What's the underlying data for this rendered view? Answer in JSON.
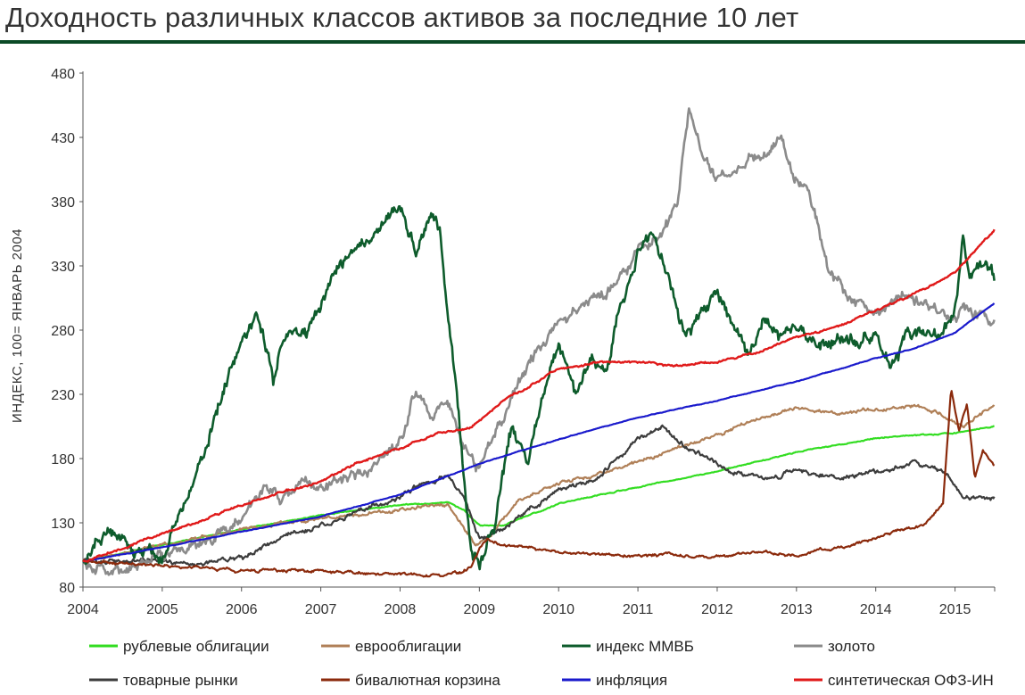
{
  "title": "Доходность различных классов активов за последние 10 лет",
  "chart_data": {
    "type": "line",
    "title": "Доходность различных классов активов за последние 10 лет",
    "xlabel": "",
    "ylabel": "ИНДЕКС, 100= ЯНВАРЬ 2004",
    "xlim": [
      2004,
      2015.5
    ],
    "ylim": [
      80,
      480
    ],
    "x_ticks": [
      "2004",
      "2005",
      "2006",
      "2007",
      "2008",
      "2009",
      "2010",
      "2011",
      "2012",
      "2013",
      "2014",
      "2015"
    ],
    "y_ticks": [
      "80",
      "130",
      "180",
      "230",
      "280",
      "330",
      "380",
      "430",
      "480"
    ],
    "legend_position": "bottom",
    "series": [
      {
        "name": "рублевые облигации",
        "color": "#33dd22",
        "x": [
          2004,
          2005,
          2006,
          2007,
          2008,
          2008.6,
          2008.8,
          2009.0,
          2009.3,
          2010,
          2011,
          2012,
          2013,
          2014,
          2015,
          2015.5
        ],
        "y": [
          100,
          113,
          125,
          136,
          144,
          146,
          140,
          128,
          128,
          145,
          158,
          170,
          185,
          196,
          200,
          205
        ]
      },
      {
        "name": "еврооблигации",
        "color": "#b08058",
        "x": [
          2004,
          2005,
          2006,
          2007,
          2008,
          2008.6,
          2008.8,
          2008.95,
          2009.1,
          2009.5,
          2010,
          2010.5,
          2011,
          2011.5,
          2012,
          2012.5,
          2013,
          2013.5,
          2014,
          2014.5,
          2014.9,
          2015.1,
          2015.5
        ],
        "y": [
          100,
          112,
          125,
          134,
          140,
          144,
          126,
          112,
          118,
          148,
          160,
          168,
          178,
          188,
          198,
          210,
          220,
          215,
          218,
          222,
          212,
          205,
          222
        ]
      },
      {
        "name": "индекс ММВБ",
        "color": "#0e5c2c",
        "x": [
          2004,
          2004.3,
          2004.6,
          2005,
          2005.4,
          2005.8,
          2006,
          2006.2,
          2006.4,
          2006.6,
          2006.8,
          2007,
          2007.2,
          2007.4,
          2007.6,
          2007.8,
          2008,
          2008.1,
          2008.2,
          2008.4,
          2008.5,
          2008.6,
          2008.7,
          2008.8,
          2008.9,
          2009.0,
          2009.2,
          2009.4,
          2009.6,
          2009.8,
          2010,
          2010.2,
          2010.4,
          2010.6,
          2010.8,
          2011,
          2011.2,
          2011.4,
          2011.6,
          2011.8,
          2012,
          2012.2,
          2012.4,
          2012.6,
          2012.8,
          2013,
          2013.2,
          2013.4,
          2013.6,
          2013.8,
          2014,
          2014.2,
          2014.4,
          2014.6,
          2014.8,
          2015,
          2015.1,
          2015.2,
          2015.3,
          2015.5
        ],
        "y": [
          100,
          120,
          110,
          105,
          160,
          240,
          270,
          300,
          240,
          290,
          275,
          300,
          330,
          345,
          350,
          365,
          380,
          360,
          340,
          370,
          360,
          300,
          250,
          170,
          110,
          100,
          130,
          200,
          180,
          230,
          270,
          230,
          260,
          250,
          300,
          340,
          350,
          320,
          270,
          290,
          310,
          280,
          260,
          290,
          270,
          285,
          275,
          265,
          280,
          270,
          275,
          250,
          275,
          280,
          270,
          295,
          350,
          320,
          330,
          320
        ]
      },
      {
        "name": "золото",
        "color": "#8b8b8b",
        "x": [
          2004,
          2004.4,
          2004.7,
          2005,
          2005.5,
          2006,
          2006.3,
          2006.5,
          2006.8,
          2007,
          2007.3,
          2007.6,
          2008,
          2008.2,
          2008.4,
          2008.6,
          2008.8,
          2009,
          2009.2,
          2009.5,
          2009.8,
          2010,
          2010.3,
          2010.6,
          2010.9,
          2011,
          2011.3,
          2011.5,
          2011.65,
          2011.8,
          2012,
          2012.3,
          2012.6,
          2012.8,
          2013,
          2013.2,
          2013.4,
          2013.6,
          2013.8,
          2014,
          2014.3,
          2014.6,
          2014.9,
          2015.1,
          2015.3,
          2015.5
        ],
        "y": [
          100,
          92,
          100,
          105,
          115,
          135,
          155,
          150,
          160,
          155,
          165,
          170,
          190,
          235,
          215,
          225,
          190,
          170,
          200,
          240,
          270,
          290,
          300,
          310,
          330,
          340,
          350,
          380,
          455,
          420,
          400,
          410,
          420,
          430,
          400,
          380,
          330,
          310,
          300,
          290,
          310,
          300,
          290,
          300,
          290,
          285
        ]
      },
      {
        "name": "товарные рынки",
        "color": "#3c3c3c",
        "x": [
          2004,
          2005,
          2005.5,
          2006,
          2006.5,
          2007,
          2007.5,
          2008,
          2008.3,
          2008.6,
          2008.8,
          2009,
          2009.3,
          2009.6,
          2010,
          2010.5,
          2011,
          2011.3,
          2011.6,
          2012,
          2012.5,
          2013,
          2013.5,
          2014,
          2014.5,
          2014.9,
          2015.1,
          2015.5
        ],
        "y": [
          100,
          100,
          98,
          103,
          118,
          128,
          140,
          150,
          160,
          167,
          150,
          120,
          125,
          140,
          155,
          165,
          195,
          205,
          190,
          175,
          165,
          170,
          165,
          170,
          178,
          168,
          150,
          150
        ]
      },
      {
        "name": "бивалютная корзина",
        "color": "#8b2a0c",
        "x": [
          2004,
          2004.5,
          2005,
          2005.5,
          2006,
          2007,
          2008,
          2008.6,
          2008.8,
          2008.9,
          2009,
          2009.1,
          2009.3,
          2009.6,
          2010,
          2010.5,
          2011,
          2011.5,
          2012,
          2012.5,
          2013,
          2013.5,
          2014,
          2014.3,
          2014.6,
          2014.85,
          2014.95,
          2015.05,
          2015.15,
          2015.25,
          2015.35,
          2015.5
        ],
        "y": [
          100,
          98,
          97,
          95,
          93,
          92,
          90,
          90,
          92,
          97,
          110,
          118,
          112,
          110,
          108,
          105,
          104,
          106,
          103,
          107,
          105,
          110,
          118,
          125,
          128,
          145,
          235,
          200,
          222,
          165,
          185,
          175
        ]
      },
      {
        "name": "инфляция",
        "color": "#1a1acc",
        "x": [
          2004,
          2005,
          2006,
          2007,
          2008,
          2009,
          2010,
          2011,
          2012,
          2013,
          2014,
          2014.5,
          2015,
          2015.5
        ],
        "y": [
          100,
          111,
          123,
          135,
          152,
          176,
          195,
          212,
          225,
          240,
          258,
          266,
          278,
          301
        ]
      },
      {
        "name": "синтетическая ОФЗ-ИН",
        "color": "#e01a1a",
        "x": [
          2004,
          2004.5,
          2005,
          2005.5,
          2005.9,
          2006.3,
          2007,
          2007.5,
          2008,
          2008.5,
          2008.8,
          2008.9,
          2009,
          2009.3,
          2009.6,
          2009.9,
          2010.2,
          2010.5,
          2010.8,
          2011,
          2011.5,
          2012,
          2012.5,
          2013,
          2013.5,
          2014,
          2014.5,
          2015,
          2015.5
        ],
        "y": [
          100,
          110,
          122,
          132,
          142,
          150,
          162,
          178,
          188,
          200,
          202,
          205,
          210,
          225,
          235,
          248,
          252,
          255,
          255,
          255,
          252,
          256,
          262,
          275,
          282,
          295,
          308,
          325,
          358
        ]
      }
    ]
  }
}
